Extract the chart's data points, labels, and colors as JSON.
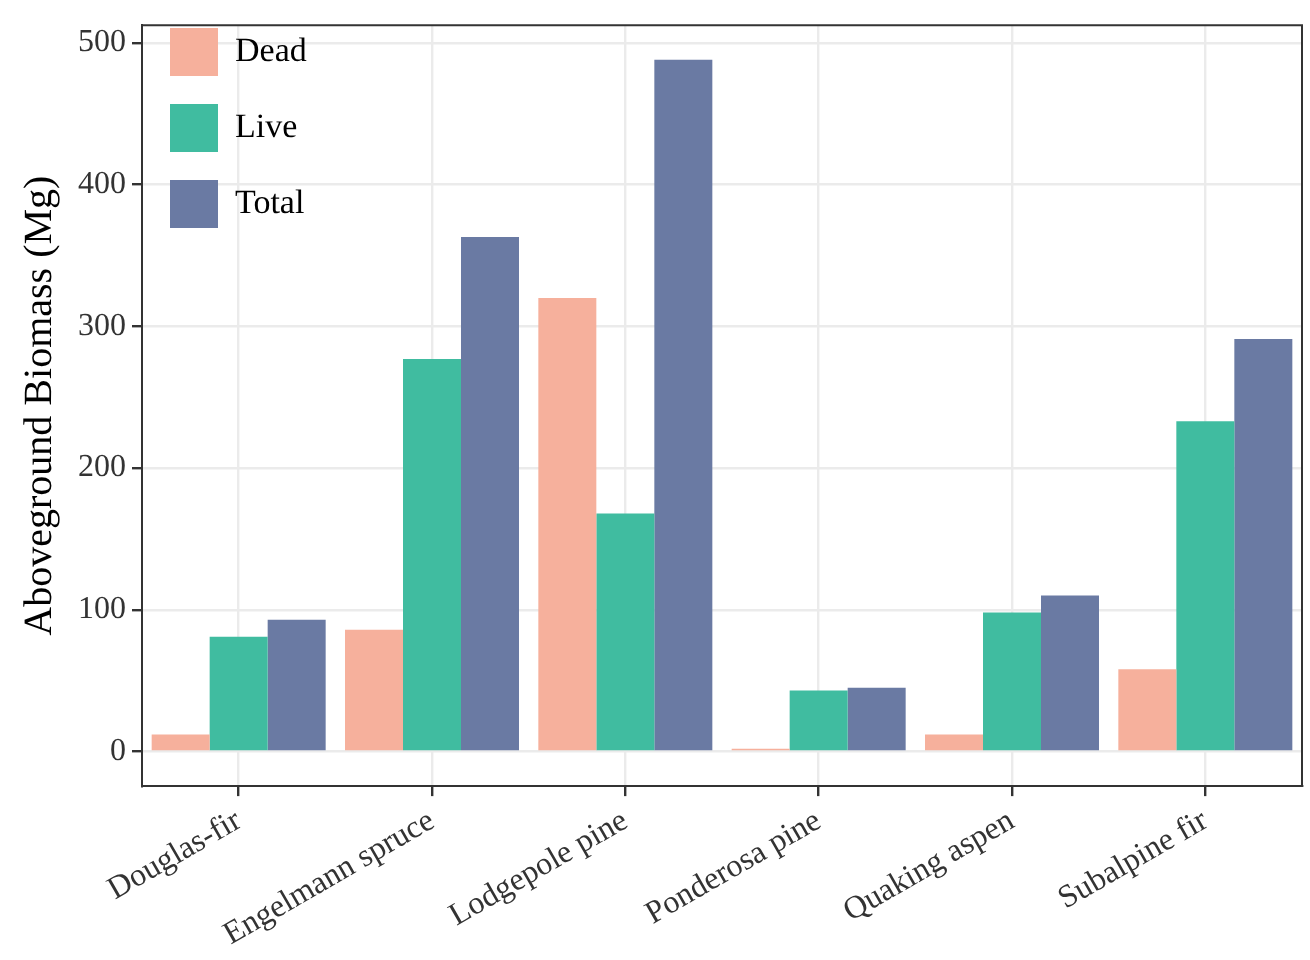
{
  "chart_data": {
    "type": "bar",
    "ylabel": "Aboveground Biomass (Mg)",
    "categories": [
      "Douglas-fir",
      "Engelmann spruce",
      "Lodgepole pine",
      "Ponderosa pine",
      "Quaking aspen",
      "Subalpine fir"
    ],
    "series": [
      {
        "name": "Dead",
        "color": "#f6b09c",
        "values": [
          12,
          86,
          320,
          2,
          12,
          58
        ]
      },
      {
        "name": "Live",
        "color": "#40bca0",
        "values": [
          81,
          277,
          168,
          43,
          98,
          233
        ]
      },
      {
        "name": "Total",
        "color": "#6a7aa3",
        "values": [
          93,
          363,
          488,
          45,
          110,
          291
        ]
      }
    ],
    "ylim": [
      -24.4,
      512.4
    ],
    "yticks": [
      0,
      100,
      200,
      300,
      400,
      500
    ],
    "grid": true,
    "legend": "top left"
  }
}
